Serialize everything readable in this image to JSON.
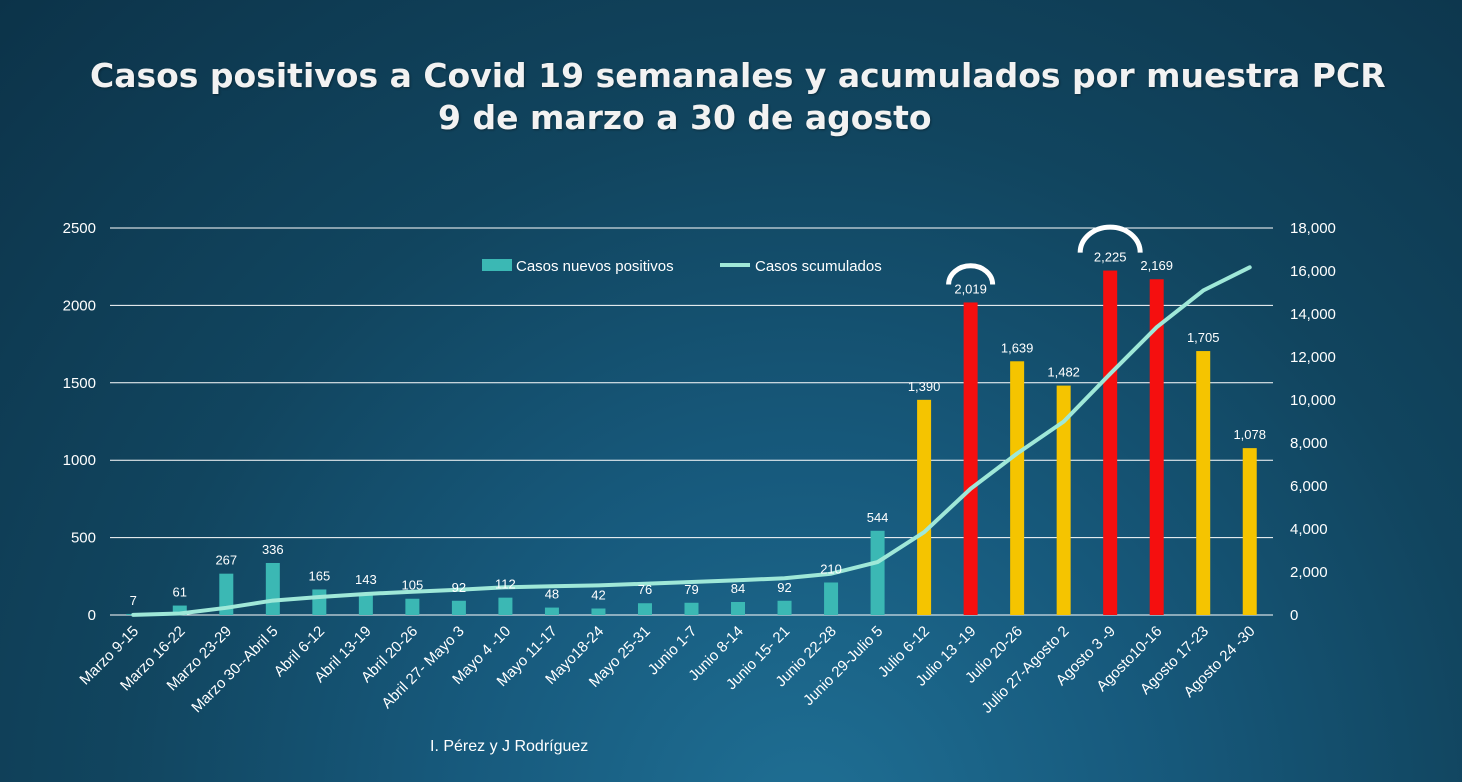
{
  "title_line1": "Casos positivos a Covid 19 semanales y acumulados por muestra PCR",
  "title_line2": "9 de marzo a 30 de agosto",
  "credit": "I. Pérez y J Rodríguez",
  "colors": {
    "teal_bar": "#3bb8b4",
    "yellow_bar": "#f5c400",
    "red_bar": "#f50f0f",
    "line": "#9fe8d8",
    "grid": "#ffffff",
    "arc": "#ffffff"
  },
  "chart_data": {
    "type": "bar",
    "title": "Casos positivos a Covid 19 semanales y acumulados por muestra PCR",
    "subtitle": "9 de marzo a 30 de agosto",
    "categories": [
      "Marzo 9-15",
      "Marzo 16-22",
      "Marzo 23-29",
      "Marzo 30--Abril 5",
      "Abril 6-12",
      "Abril 13-19",
      "Abril 20-26",
      "Abril 27- Mayo 3",
      "Mayo 4 -10",
      "Mayo 11-17",
      "Mayo18-24",
      "Mayo 25-31",
      "Junio  1-7",
      "Junio 8-14",
      "Junio 15- 21",
      "Junio 22-28",
      "Junio  29-Julio 5",
      "Julio 6-12",
      "Julio 13 -19",
      "Julio 20-26",
      "Julio 27-Agosto 2",
      "Agosto 3 -9",
      "Agosto10-16",
      "Agosto 17-23",
      "Agosto 24 -30"
    ],
    "series": [
      {
        "name": "Casos nuevos positivos",
        "type": "bar",
        "axis": "left",
        "values": [
          7,
          61,
          267,
          336,
          165,
          143,
          105,
          92,
          112,
          48,
          42,
          76,
          79,
          84,
          92,
          210,
          544,
          1390,
          2019,
          1639,
          1482,
          2225,
          2169,
          1705,
          1078
        ],
        "labels": [
          "7",
          "61",
          "267",
          "336",
          "165",
          "143",
          "105",
          "92",
          "112",
          "48",
          "42",
          "76",
          "79",
          "84",
          "92",
          "210",
          "544",
          "1,390",
          "2,019",
          "1,639",
          "1,482",
          "2,225",
          "2,169",
          "1,705",
          "1,078"
        ],
        "bar_colors": [
          "teal",
          "teal",
          "teal",
          "teal",
          "teal",
          "teal",
          "teal",
          "teal",
          "teal",
          "teal",
          "teal",
          "teal",
          "teal",
          "teal",
          "teal",
          "teal",
          "teal",
          "yellow",
          "red",
          "yellow",
          "yellow",
          "red",
          "red",
          "yellow",
          "yellow"
        ]
      },
      {
        "name": "Casos scumulados",
        "type": "line",
        "axis": "right",
        "values": [
          7,
          68,
          335,
          671,
          836,
          979,
          1084,
          1176,
          1288,
          1336,
          1378,
          1454,
          1533,
          1617,
          1709,
          1919,
          2463,
          3853,
          5872,
          7511,
          8993,
          11218,
          13387,
          15092,
          16170
        ]
      }
    ],
    "y_left": {
      "min": 0,
      "max": 2500,
      "ticks": [
        "0",
        "500",
        "1000",
        "1500",
        "2000",
        "2500"
      ]
    },
    "y_right": {
      "min": 0,
      "max": 18000,
      "ticks": [
        "0",
        "2,000",
        "4,000",
        "6,000",
        "8,000",
        "10,000",
        "12,000",
        "14,000",
        "16,000",
        "18,000"
      ]
    },
    "grid": true,
    "legend_position": "top-center",
    "highlight_arcs": [
      18,
      21
    ]
  }
}
